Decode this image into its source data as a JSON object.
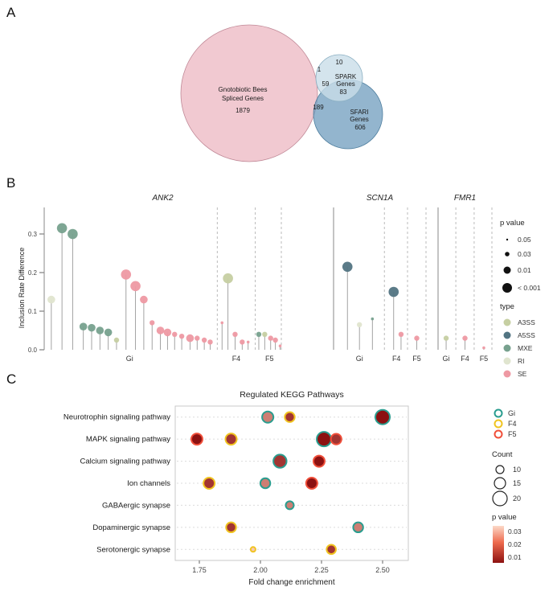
{
  "figure": {
    "a": "A",
    "b": "B",
    "c": "C"
  },
  "venn": {
    "gnotobiotic": {
      "label": [
        "Gnotobiotic Bees",
        "Spliced Genes"
      ],
      "value": "1879"
    },
    "spark": {
      "label": [
        "SPARK",
        "Genes"
      ],
      "value": "83",
      "top_value": "10"
    },
    "sfari": {
      "label": [
        "SFARI",
        "Genes"
      ],
      "value": "606"
    },
    "overlap_gnoto_spark": "1",
    "overlap_center": "59",
    "overlap_gnoto_sfari": "189",
    "colors": {
      "gnotobiotic": "#efc0c9",
      "spark": "#c9dde9",
      "sfari": "#6f9cbd"
    }
  },
  "chart_data": [
    {
      "type": "scatter",
      "subtype": "lollipop",
      "ylabel": "Inclusion Rate Difference",
      "yticks": [
        0,
        0.1,
        0.2,
        0.3
      ],
      "ylim": [
        0,
        0.34
      ],
      "groups": [
        "Gi",
        "F4",
        "F5"
      ],
      "size_legend": {
        "title": "p value",
        "entries": [
          "0.05",
          "0.03",
          "0.01",
          "< 0.001"
        ]
      },
      "type_legend": {
        "title": "type",
        "entries": [
          {
            "name": "A3SS",
            "color": "#c6cfa2"
          },
          {
            "name": "A5SS",
            "color": "#527482"
          },
          {
            "name": "MXE",
            "color": "#77a18e"
          },
          {
            "name": "RI",
            "color": "#e0e5cf"
          },
          {
            "name": "SE",
            "color": "#ee99a3"
          }
        ]
      },
      "facets": [
        {
          "title": "ANK2",
          "dividers": [
            0.73,
            0.89,
            1.0
          ],
          "group_label_pos": [
            0.36,
            0.81,
            0.95
          ],
          "points": [
            {
              "x": 0.03,
              "value": 0.13,
              "type": "RI",
              "p": "0.01"
            },
            {
              "x": 0.075,
              "value": 0.315,
              "type": "MXE",
              "p": "< 0.001"
            },
            {
              "x": 0.12,
              "value": 0.3,
              "type": "MXE",
              "p": "< 0.001"
            },
            {
              "x": 0.165,
              "value": 0.06,
              "type": "MXE",
              "p": "0.01"
            },
            {
              "x": 0.2,
              "value": 0.057,
              "type": "MXE",
              "p": "0.01"
            },
            {
              "x": 0.235,
              "value": 0.05,
              "type": "MXE",
              "p": "0.01"
            },
            {
              "x": 0.27,
              "value": 0.045,
              "type": "MXE",
              "p": "0.01"
            },
            {
              "x": 0.305,
              "value": 0.025,
              "type": "A3SS",
              "p": "0.03"
            },
            {
              "x": 0.345,
              "value": 0.195,
              "type": "SE",
              "p": "< 0.001"
            },
            {
              "x": 0.385,
              "value": 0.165,
              "type": "SE",
              "p": "< 0.001"
            },
            {
              "x": 0.42,
              "value": 0.13,
              "type": "SE",
              "p": "0.01"
            },
            {
              "x": 0.455,
              "value": 0.07,
              "type": "SE",
              "p": "0.03"
            },
            {
              "x": 0.49,
              "value": 0.05,
              "type": "SE",
              "p": "0.01"
            },
            {
              "x": 0.52,
              "value": 0.045,
              "type": "SE",
              "p": "0.01"
            },
            {
              "x": 0.55,
              "value": 0.04,
              "type": "SE",
              "p": "0.03"
            },
            {
              "x": 0.58,
              "value": 0.035,
              "type": "SE",
              "p": "0.03"
            },
            {
              "x": 0.615,
              "value": 0.03,
              "type": "SE",
              "p": "0.01"
            },
            {
              "x": 0.645,
              "value": 0.03,
              "type": "SE",
              "p": "0.03"
            },
            {
              "x": 0.675,
              "value": 0.025,
              "type": "SE",
              "p": "0.03"
            },
            {
              "x": 0.7,
              "value": 0.02,
              "type": "SE",
              "p": "0.03"
            },
            {
              "x": 0.75,
              "value": 0.07,
              "type": "SE",
              "p": "0.05"
            },
            {
              "x": 0.775,
              "value": 0.185,
              "type": "A3SS",
              "p": "< 0.001"
            },
            {
              "x": 0.805,
              "value": 0.04,
              "type": "SE",
              "p": "0.03"
            },
            {
              "x": 0.835,
              "value": 0.02,
              "type": "SE",
              "p": "0.03"
            },
            {
              "x": 0.86,
              "value": 0.02,
              "type": "SE",
              "p": "0.05"
            },
            {
              "x": 0.905,
              "value": 0.04,
              "type": "MXE",
              "p": "0.03"
            },
            {
              "x": 0.93,
              "value": 0.04,
              "type": "A3SS",
              "p": "0.03"
            },
            {
              "x": 0.955,
              "value": 0.03,
              "type": "SE",
              "p": "0.03"
            },
            {
              "x": 0.975,
              "value": 0.025,
              "type": "SE",
              "p": "0.03"
            },
            {
              "x": 0.995,
              "value": 0.01,
              "type": "SE",
              "p": "0.05"
            }
          ]
        },
        {
          "title": "SCN1A",
          "dividers": [
            0.55,
            0.8,
            1.0
          ],
          "group_label_pos": [
            0.28,
            0.68,
            0.9
          ],
          "points": [
            {
              "x": 0.15,
              "value": 0.215,
              "type": "A5SS",
              "p": "< 0.001"
            },
            {
              "x": 0.28,
              "value": 0.065,
              "type": "RI",
              "p": "0.03"
            },
            {
              "x": 0.42,
              "value": 0.08,
              "type": "MXE",
              "p": "0.05"
            },
            {
              "x": 0.65,
              "value": 0.15,
              "type": "A5SS",
              "p": "< 0.001"
            },
            {
              "x": 0.73,
              "value": 0.04,
              "type": "SE",
              "p": "0.03"
            },
            {
              "x": 0.9,
              "value": 0.03,
              "type": "SE",
              "p": "0.03"
            }
          ]
        },
        {
          "title": "FMR1",
          "dividers": [
            0.33,
            0.67,
            1.0
          ],
          "group_label_pos": [
            0.15,
            0.5,
            0.85
          ],
          "points": [
            {
              "x": 0.15,
              "value": 0.03,
              "type": "A3SS",
              "p": "0.03"
            },
            {
              "x": 0.5,
              "value": 0.03,
              "type": "SE",
              "p": "0.03"
            },
            {
              "x": 0.85,
              "value": 0.005,
              "type": "SE",
              "p": "0.05"
            }
          ]
        }
      ]
    },
    {
      "type": "scatter",
      "subtype": "bubble-dotplot",
      "title": "Regulated KEGG Pathways",
      "xlabel": "Fold change enrichment",
      "xticks": [
        1.75,
        2.0,
        2.25,
        2.5
      ],
      "xlim": [
        1.65,
        2.61
      ],
      "categories": [
        "Neurotrophin signaling pathway",
        "MAPK signaling pathway",
        "Calcium signaling pathway",
        "Ion channels",
        "GABAergic synapse",
        "Dopaminergic synapse",
        "Serotonergic synapse"
      ],
      "groups": [
        {
          "name": "Gi",
          "color": "#2a9d8f"
        },
        {
          "name": "F4",
          "color": "#f0c420"
        },
        {
          "name": "F5",
          "color": "#f04f3a"
        }
      ],
      "count_legend": {
        "title": "Count",
        "entries": [
          10,
          15,
          20
        ]
      },
      "p_legend": {
        "title": "p value",
        "ticks": [
          "0.03",
          "0.02",
          "0.01"
        ]
      },
      "points": [
        {
          "pathway": "Neurotrophin signaling pathway",
          "x": 2.03,
          "group": "Gi",
          "count": 15,
          "p": 0.02
        },
        {
          "pathway": "Neurotrophin signaling pathway",
          "x": 2.12,
          "group": "F4",
          "count": 13,
          "p": 0.01
        },
        {
          "pathway": "Neurotrophin signaling pathway",
          "x": 2.5,
          "group": "Gi",
          "count": 20,
          "p": 0.005
        },
        {
          "pathway": "MAPK signaling pathway",
          "x": 1.74,
          "group": "F5",
          "count": 15,
          "p": 0.005
        },
        {
          "pathway": "MAPK signaling pathway",
          "x": 1.88,
          "group": "F4",
          "count": 15,
          "p": 0.01
        },
        {
          "pathway": "MAPK signaling pathway",
          "x": 2.26,
          "group": "Gi",
          "count": 20,
          "p": 0.005
        },
        {
          "pathway": "MAPK signaling pathway",
          "x": 2.31,
          "group": "F5",
          "count": 14,
          "p": 0.01
        },
        {
          "pathway": "Calcium signaling pathway",
          "x": 2.08,
          "group": "Gi",
          "count": 18,
          "p": 0.01
        },
        {
          "pathway": "Calcium signaling pathway",
          "x": 2.24,
          "group": "F5",
          "count": 15,
          "p": 0.005
        },
        {
          "pathway": "Ion channels",
          "x": 1.79,
          "group": "F4",
          "count": 15,
          "p": 0.01
        },
        {
          "pathway": "Ion channels",
          "x": 2.02,
          "group": "Gi",
          "count": 13,
          "p": 0.02
        },
        {
          "pathway": "Ion channels",
          "x": 2.21,
          "group": "F5",
          "count": 15,
          "p": 0.005
        },
        {
          "pathway": "GABAergic synapse",
          "x": 2.12,
          "group": "Gi",
          "count": 10,
          "p": 0.02
        },
        {
          "pathway": "Dopaminergic synapse",
          "x": 1.88,
          "group": "F4",
          "count": 13,
          "p": 0.01
        },
        {
          "pathway": "Dopaminergic synapse",
          "x": 2.4,
          "group": "Gi",
          "count": 13,
          "p": 0.02
        },
        {
          "pathway": "Serotonergic synapse",
          "x": 1.97,
          "group": "F4",
          "count": 5,
          "p": 0.03
        },
        {
          "pathway": "Serotonergic synapse",
          "x": 2.29,
          "group": "F4",
          "count": 12,
          "p": 0.01
        }
      ]
    }
  ]
}
